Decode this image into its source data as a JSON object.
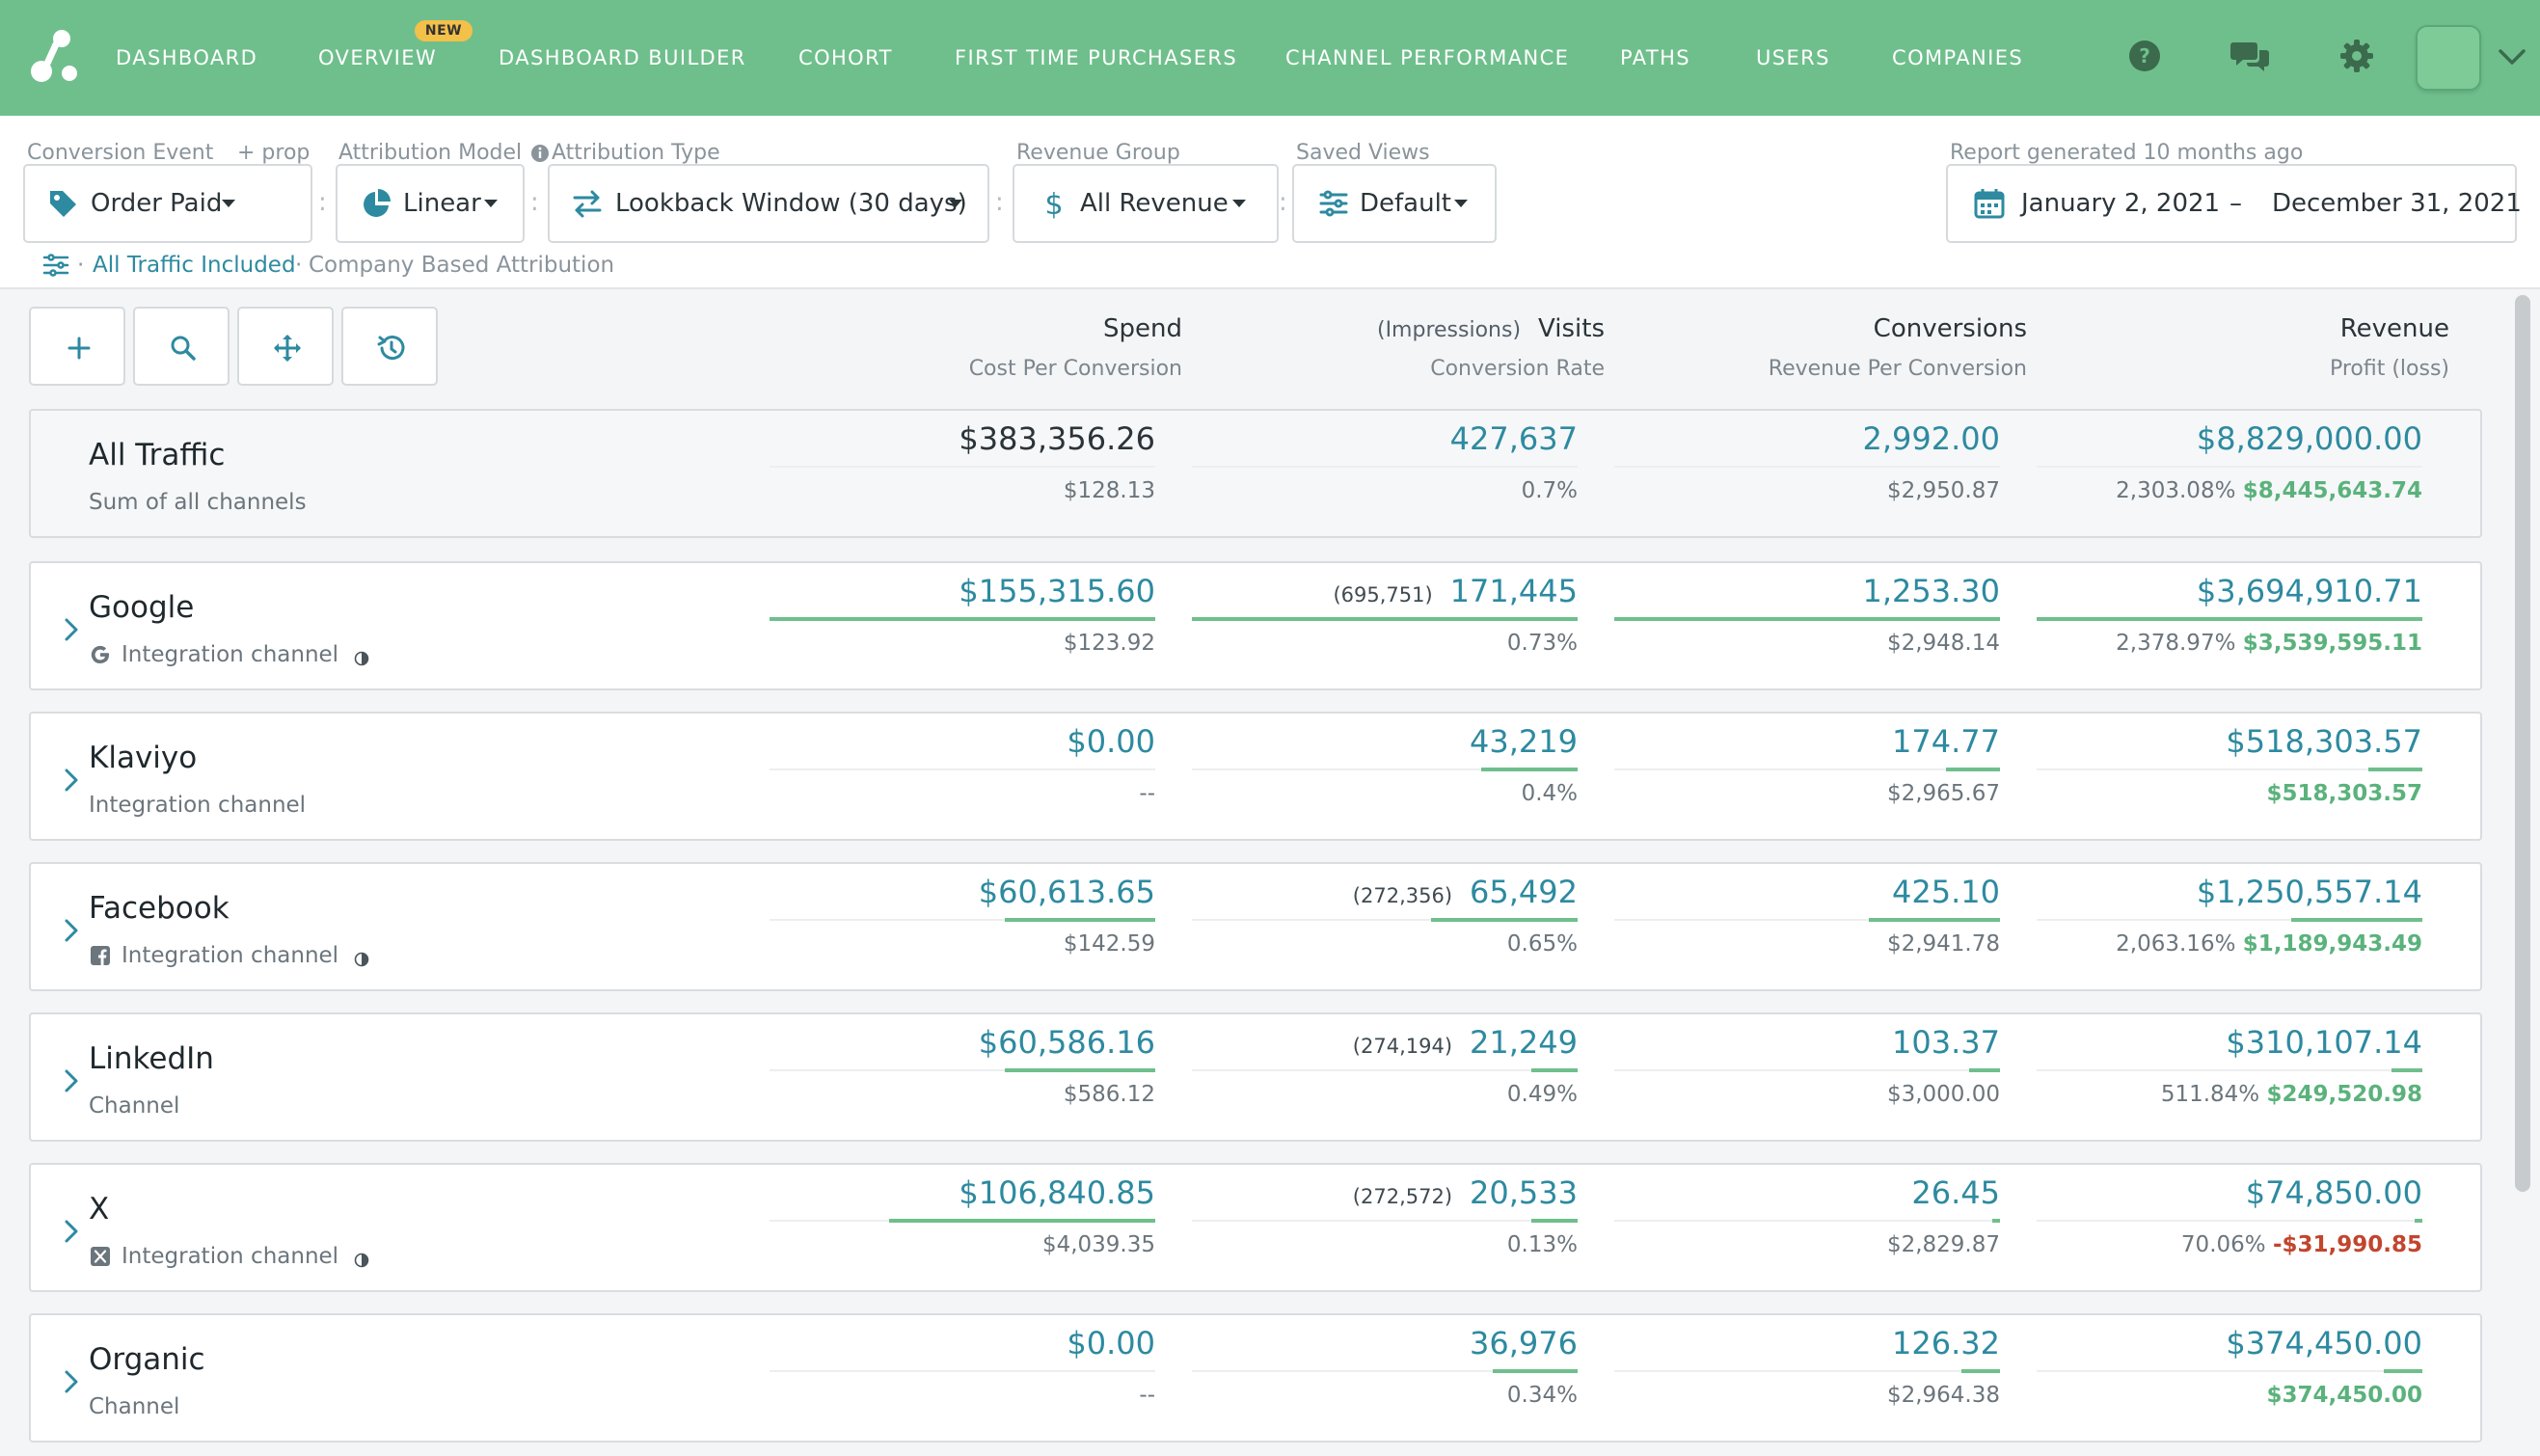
{
  "nav": {
    "items": [
      "DASHBOARD",
      "OVERVIEW",
      "DASHBOARD BUILDER",
      "COHORT",
      "FIRST TIME PURCHASERS",
      "CHANNEL PERFORMANCE",
      "PATHS",
      "USERS",
      "COMPANIES"
    ],
    "new_badge": "NEW",
    "icons": [
      "help-icon",
      "chat-icon",
      "settings-icon"
    ]
  },
  "filters": {
    "conversion_event_label": "Conversion Event",
    "add_prop": "+ prop",
    "conversion_event_value": "Order Paid",
    "attribution_model_label": "Attribution Model",
    "attribution_model_value": "Linear",
    "attribution_type_label": "Attribution Type",
    "attribution_type_value": "Lookback Window (30 days)",
    "revenue_group_label": "Revenue Group",
    "revenue_group_value": "All Revenue",
    "saved_views_label": "Saved Views",
    "saved_views_value": "Default",
    "report_generated": "Report generated 10 months ago",
    "date_start": "January 2, 2021",
    "date_sep": "–",
    "date_end": "December 31, 2021",
    "traffic_filter": "All Traffic Included",
    "attribution_note": "Company Based Attribution",
    "sep_dot": "·"
  },
  "columns": {
    "spend": "Spend",
    "cost_per_conversion": "Cost Per Conversion",
    "impressions": "(Impressions)",
    "visits": "Visits",
    "conversion_rate": "Conversion Rate",
    "conversions": "Conversions",
    "revenue_per_conversion": "Revenue Per Conversion",
    "revenue": "Revenue",
    "profit": "Profit (loss)"
  },
  "rows": [
    {
      "name": "All Traffic",
      "sub": "Sum of all channels",
      "spend": "$383,356.26",
      "cpc": "$128.13",
      "impressions": "",
      "visits": "427,637",
      "conv_rate": "0.7%",
      "conversions": "2,992.00",
      "rev_per_conv": "$2,950.87",
      "revenue": "$8,829,000.00",
      "roi": "2,303.08%",
      "profit": "$8,445,643.74",
      "profit_sign": "pos",
      "spend_bar": 0,
      "visits_bar": 0,
      "conv_bar": 0,
      "rev_bar": 0
    },
    {
      "name": "Google",
      "sub": "Integration channel",
      "spend": "$155,315.60",
      "cpc": "$123.92",
      "impressions": "(695,751)",
      "visits": "171,445",
      "conv_rate": "0.73%",
      "conversions": "1,253.30",
      "rev_per_conv": "$2,948.14",
      "revenue": "$3,694,910.71",
      "roi": "2,378.97%",
      "profit": "$3,539,595.11",
      "profit_sign": "pos",
      "spend_bar": 1.0,
      "visits_bar": 1.0,
      "conv_bar": 1.0,
      "rev_bar": 1.0
    },
    {
      "name": "Klaviyo",
      "sub": "Integration channel",
      "spend": "$0.00",
      "cpc": "--",
      "impressions": "",
      "visits": "43,219",
      "conv_rate": "0.4%",
      "conversions": "174.77",
      "rev_per_conv": "$2,965.67",
      "revenue": "$518,303.57",
      "roi": "",
      "profit": "$518,303.57",
      "profit_sign": "pos",
      "spend_bar": 0,
      "visits_bar": 0.25,
      "conv_bar": 0.14,
      "rev_bar": 0.14
    },
    {
      "name": "Facebook",
      "sub": "Integration channel",
      "spend": "$60,613.65",
      "cpc": "$142.59",
      "impressions": "(272,356)",
      "visits": "65,492",
      "conv_rate": "0.65%",
      "conversions": "425.10",
      "rev_per_conv": "$2,941.78",
      "revenue": "$1,250,557.14",
      "roi": "2,063.16%",
      "profit": "$1,189,943.49",
      "profit_sign": "pos",
      "spend_bar": 0.39,
      "visits_bar": 0.38,
      "conv_bar": 0.34,
      "rev_bar": 0.34
    },
    {
      "name": "LinkedIn",
      "sub": "Channel",
      "spend": "$60,586.16",
      "cpc": "$586.12",
      "impressions": "(274,194)",
      "visits": "21,249",
      "conv_rate": "0.49%",
      "conversions": "103.37",
      "rev_per_conv": "$3,000.00",
      "revenue": "$310,107.14",
      "roi": "511.84%",
      "profit": "$249,520.98",
      "profit_sign": "pos",
      "spend_bar": 0.39,
      "visits_bar": 0.12,
      "conv_bar": 0.08,
      "rev_bar": 0.08
    },
    {
      "name": "X",
      "sub": "Integration channel",
      "spend": "$106,840.85",
      "cpc": "$4,039.35",
      "impressions": "(272,572)",
      "visits": "20,533",
      "conv_rate": "0.13%",
      "conversions": "26.45",
      "rev_per_conv": "$2,829.87",
      "revenue": "$74,850.00",
      "roi": "70.06%",
      "profit": "-$31,990.85",
      "profit_sign": "neg",
      "spend_bar": 0.69,
      "visits_bar": 0.12,
      "conv_bar": 0.02,
      "rev_bar": 0.02
    },
    {
      "name": "Organic",
      "sub": "Channel",
      "spend": "$0.00",
      "cpc": "--",
      "impressions": "",
      "visits": "36,976",
      "conv_rate": "0.34%",
      "conversions": "126.32",
      "rev_per_conv": "$2,964.38",
      "revenue": "$374,450.00",
      "roi": "",
      "profit": "$374,450.00",
      "profit_sign": "pos",
      "spend_bar": 0,
      "visits_bar": 0.22,
      "conv_bar": 0.1,
      "rev_bar": 0.1
    }
  ],
  "row_icons": [
    "",
    "google-icon",
    "",
    "facebook-icon",
    "",
    "x-icon",
    ""
  ],
  "row_has_status": [
    false,
    true,
    false,
    true,
    false,
    true,
    false
  ],
  "colors": {
    "nav_bg": "#6fbf8c",
    "accent": "#2d8aa0",
    "profit_positive": "#5bb27c",
    "profit_negative": "#c2452d",
    "new_badge": "#f3c04a"
  }
}
